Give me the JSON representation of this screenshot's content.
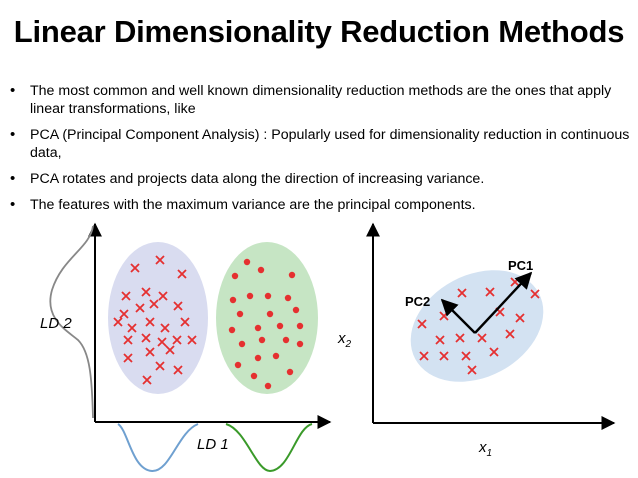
{
  "title": "Linear Dimensionality Reduction Methods",
  "bullets": [
    "The most common and well known dimensionality reduction methods are the ones that apply linear transformations, like",
    "PCA (Principal Component Analysis) : Popularly used for dimensionality reduction in continuous data,",
    "PCA rotates and projects data along the direction of increasing variance.",
    "The features with the maximum variance are the principal components."
  ],
  "lda_diagram": {
    "ld1_label": "LD 1",
    "ld2_label": "LD 2",
    "class_a_color": "#d9dcf0",
    "class_b_color": "#c6e5c4",
    "curve_blue": "#6fa0d0",
    "curve_green": "#3a9a2a",
    "marker_color": "#e53030"
  },
  "pca_diagram": {
    "x_label": "x",
    "x_sub": "1",
    "y_label": "x",
    "y_sub": "2",
    "pc1_label": "PC1",
    "pc2_label": "PC2",
    "cloud_color": "#d3e2f2",
    "marker_color": "#e53030"
  }
}
